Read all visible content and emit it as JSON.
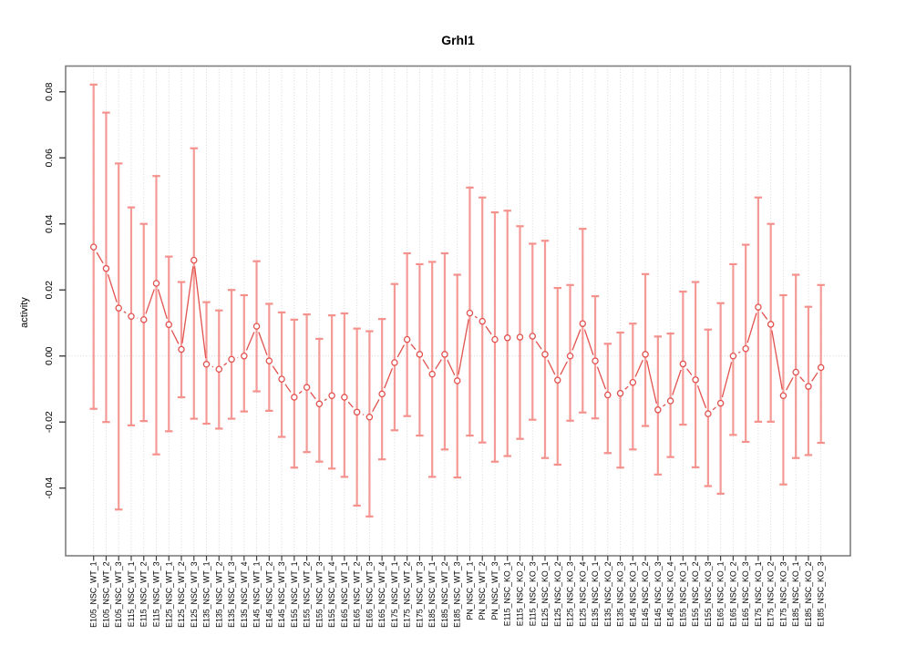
{
  "chart_data": {
    "type": "line",
    "title": "Grhl1",
    "ylabel": "activity",
    "xlabel": "",
    "legend": "none",
    "grid": "dotted vertical gridline at every category; dotted horizontal line at y=0",
    "marker": "open-circle",
    "error_bars": true,
    "ylim": [
      -0.0605,
      0.0878
    ],
    "yticks": [
      0.08,
      0.06,
      0.04,
      0.02,
      0.0,
      -0.02,
      -0.04
    ],
    "ytick_labels": [
      "0.08",
      "0.06",
      "0.04",
      "0.02",
      "0.00",
      "-0.02",
      "-0.04"
    ],
    "categories": [
      "E105_NSC_WT_1",
      "E105_NSC_WT_2",
      "E105_NSC_WT_3",
      "E115_NSC_WT_1",
      "E115_NSC_WT_2",
      "E115_NSC_WT_3",
      "E125_NSC_WT_1",
      "E125_NSC_WT_2",
      "E125_NSC_WT_3",
      "E135_NSC_WT_1",
      "E135_NSC_WT_2",
      "E135_NSC_WT_3",
      "E135_NSC_WT_4",
      "E145_NSC_WT_1",
      "E145_NSC_WT_2",
      "E145_NSC_WT_3",
      "E155_NSC_WT_1",
      "E155_NSC_WT_2",
      "E155_NSC_WT_3",
      "E155_NSC_WT_4",
      "E165_NSC_WT_1",
      "E165_NSC_WT_2",
      "E165_NSC_WT_3",
      "E165_NSC_WT_4",
      "E175_NSC_WT_1",
      "E175_NSC_WT_2",
      "E175_NSC_WT_3",
      "E185_NSC_WT_1",
      "E185_NSC_WT_2",
      "E185_NSC_WT_3",
      "PN_NSC_WT_1",
      "PN_NSC_WT_2",
      "PN_NSC_WT_3",
      "E115_NSC_KO_1",
      "E115_NSC_KO_2",
      "E115_NSC_KO_3",
      "E125_NSC_KO_1",
      "E125_NSC_KO_2",
      "E125_NSC_KO_3",
      "E125_NSC_KO_4",
      "E135_NSC_KO_1",
      "E135_NSC_KO_2",
      "E135_NSC_KO_3",
      "E145_NSC_KO_1",
      "E145_NSC_KO_2",
      "E145_NSC_KO_3",
      "E145_NSC_KO_4",
      "E155_NSC_KO_1",
      "E155_NSC_KO_2",
      "E155_NSC_KO_3",
      "E165_NSC_KO_1",
      "E165_NSC_KO_2",
      "E165_NSC_KO_3",
      "E175_NSC_KO_1",
      "E175_NSC_KO_2",
      "E175_NSC_KO_3",
      "E185_NSC_KO_1",
      "E185_NSC_KO_2",
      "E185_NSC_KO_3"
    ],
    "values": [
      0.033,
      0.0265,
      0.0145,
      0.012,
      0.011,
      0.022,
      0.0095,
      0.002,
      0.029,
      -0.0025,
      -0.004,
      -0.001,
      0.0,
      0.009,
      -0.0015,
      -0.007,
      -0.0125,
      -0.0095,
      -0.0145,
      -0.012,
      -0.0125,
      -0.017,
      -0.0185,
      -0.0115,
      -0.002,
      0.005,
      0.0005,
      -0.0055,
      0.0005,
      -0.0075,
      0.013,
      0.0105,
      0.005,
      0.0055,
      0.0057,
      0.006,
      0.0005,
      -0.0073,
      0.0,
      0.0098,
      -0.0015,
      -0.0118,
      -0.0113,
      -0.008,
      0.0005,
      -0.0163,
      -0.0136,
      -0.0024,
      -0.0072,
      -0.0175,
      -0.0143,
      0.0,
      0.0022,
      0.0148,
      0.0096,
      -0.012,
      -0.0049,
      -0.0092,
      -0.0035
    ],
    "err_low": [
      -0.016,
      -0.02,
      -0.0465,
      -0.021,
      -0.0197,
      -0.0298,
      -0.0228,
      -0.0125,
      -0.019,
      -0.0205,
      -0.022,
      -0.019,
      -0.0168,
      -0.0107,
      -0.0166,
      -0.0245,
      -0.0338,
      -0.0291,
      -0.032,
      -0.0341,
      -0.0366,
      -0.0453,
      -0.0486,
      -0.0313,
      -0.0225,
      -0.0182,
      -0.0241,
      -0.0366,
      -0.0283,
      -0.0368,
      -0.0241,
      -0.0262,
      -0.032,
      -0.0303,
      -0.0251,
      -0.0193,
      -0.0309,
      -0.0329,
      -0.0196,
      -0.0171,
      -0.0189,
      -0.0294,
      -0.0338,
      -0.0283,
      -0.0212,
      -0.0359,
      -0.0306,
      -0.0208,
      -0.0337,
      -0.0394,
      -0.0417,
      -0.0239,
      -0.026,
      -0.0199,
      -0.0199,
      -0.0389,
      -0.0309,
      -0.03,
      -0.0263
    ],
    "err_high": [
      0.0822,
      0.0737,
      0.0583,
      0.045,
      0.04,
      0.0545,
      0.0301,
      0.0224,
      0.0629,
      0.0163,
      0.0138,
      0.02,
      0.0184,
      0.0287,
      0.0158,
      0.0132,
      0.011,
      0.0126,
      0.0052,
      0.0123,
      0.0129,
      0.0083,
      0.0075,
      0.0112,
      0.0218,
      0.0311,
      0.0278,
      0.0285,
      0.0311,
      0.0246,
      0.051,
      0.048,
      0.0435,
      0.044,
      0.0393,
      0.034,
      0.0349,
      0.0206,
      0.0215,
      0.0385,
      0.0181,
      0.0037,
      0.0071,
      0.0098,
      0.0248,
      0.0059,
      0.0068,
      0.0195,
      0.0224,
      0.008,
      0.016,
      0.0278,
      0.0337,
      0.048,
      0.04,
      0.0184,
      0.0246,
      0.0149,
      0.0215
    ],
    "colors": {
      "error_bar": "#f5918c",
      "series_line": "#e2514d",
      "marker_stroke": "#e2514d",
      "marker_fill": "#ffffff",
      "gridline": "#d4d4d4",
      "zero_line": "#d4d4d4",
      "box_border": "#7f7f7f",
      "tick": "#404040",
      "tick_label": "#000000"
    }
  }
}
